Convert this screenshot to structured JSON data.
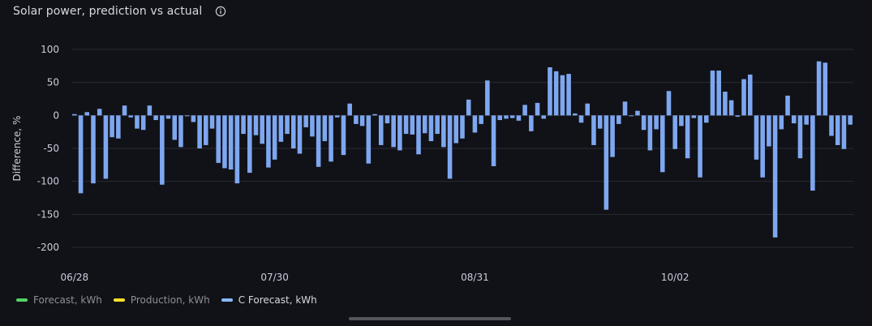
{
  "panel": {
    "title": "Solar power, prediction vs actual",
    "info_icon": "info-circle-icon"
  },
  "legend": [
    {
      "label": "Forecast, kWh",
      "color": "#56d364",
      "active": false
    },
    {
      "label": "Production, kWh",
      "color": "#fade2a",
      "active": false
    },
    {
      "label": "C Forecast, kWh",
      "color": "#8ab8ff",
      "active": true
    }
  ],
  "chart_data": {
    "type": "bar",
    "title": "Solar power, prediction vs actual",
    "xlabel": "",
    "ylabel": "Difference, %",
    "ylim": [
      -225,
      100
    ],
    "yticks": [
      100,
      50,
      0,
      -50,
      -100,
      -150,
      -200
    ],
    "xtick_labels": [
      {
        "label": "06/28",
        "index": 0
      },
      {
        "label": "07/30",
        "index": 32
      },
      {
        "label": "08/31",
        "index": 64
      },
      {
        "label": "10/02",
        "index": 96
      }
    ],
    "grid": true,
    "bar_color": "#7ea7f0",
    "series": [
      {
        "name": "C Forecast, kWh",
        "values": [
          2,
          -118,
          5,
          -103,
          10,
          -96,
          -33,
          -35,
          15,
          -3,
          -20,
          -22,
          15,
          -7,
          -105,
          -5,
          -37,
          -48,
          0,
          -10,
          -50,
          -45,
          -20,
          -72,
          -80,
          -82,
          -103,
          -28,
          -87,
          -30,
          -43,
          -79,
          -67,
          -40,
          -28,
          -50,
          -58,
          -18,
          -32,
          -78,
          -39,
          -70,
          -3,
          -60,
          18,
          -13,
          -16,
          -73,
          2,
          -45,
          -12,
          -48,
          -53,
          -28,
          -29,
          -59,
          -27,
          -39,
          -28,
          -48,
          -96,
          -42,
          -35,
          24,
          -26,
          -13,
          53,
          -77,
          -7,
          -5,
          -4,
          -8,
          16,
          -24,
          19,
          -5,
          73,
          67,
          61,
          63,
          3,
          -11,
          18,
          -45,
          -20,
          -143,
          -63,
          -13,
          21,
          -1,
          7,
          -22,
          -53,
          -21,
          -86,
          37,
          -51,
          -16,
          -65,
          -4,
          -94,
          -11,
          68,
          68,
          36,
          23,
          -2,
          55,
          62,
          -67,
          -94,
          -47,
          -185,
          -21,
          30,
          -12,
          -65,
          -14,
          -114,
          82,
          80,
          -31,
          -45,
          -51,
          -14
        ]
      }
    ]
  }
}
